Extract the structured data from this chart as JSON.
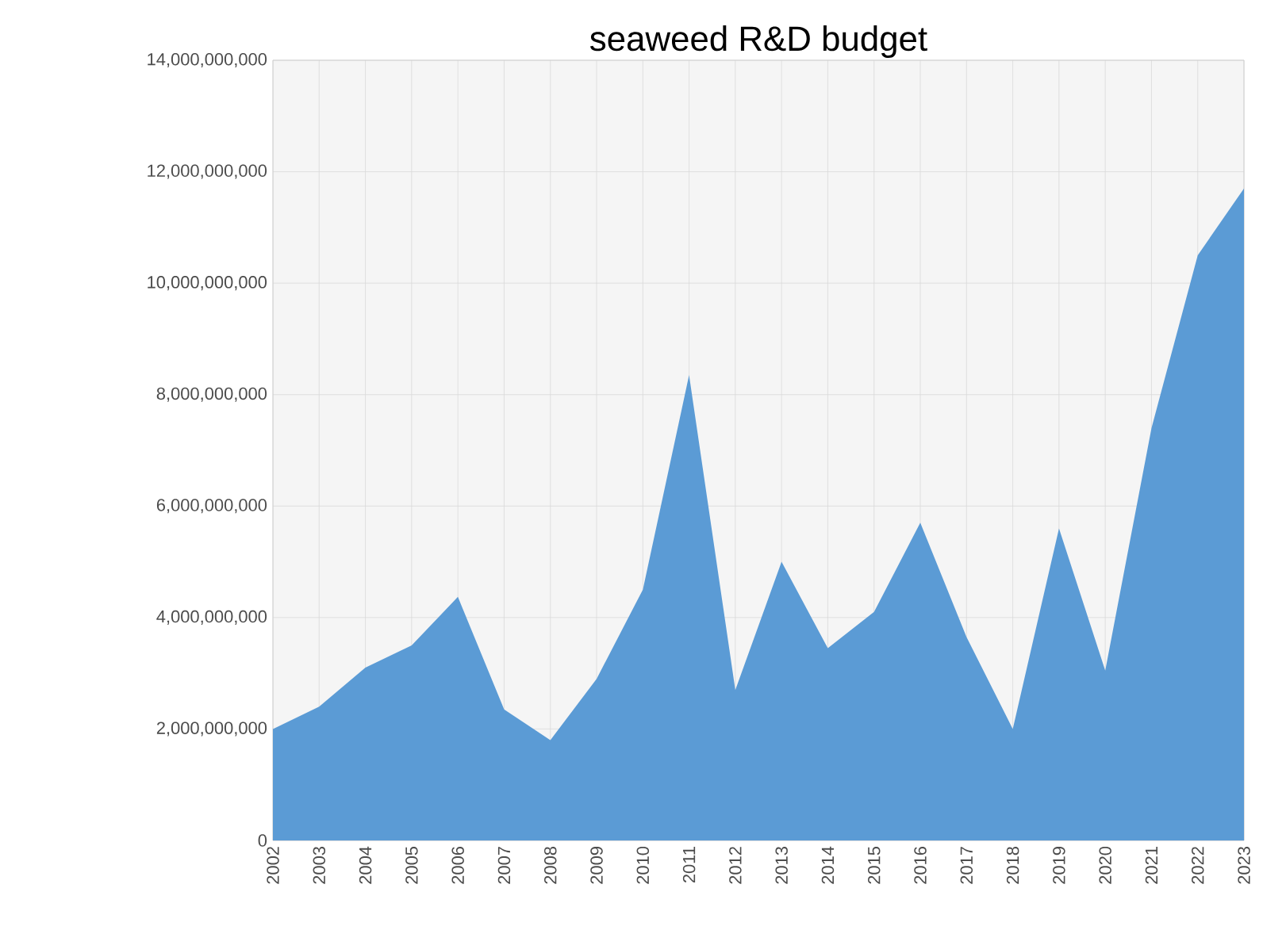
{
  "chart_data": {
    "type": "area",
    "title": "seaweed R&D budget",
    "categories": [
      "2002",
      "2003",
      "2004",
      "2005",
      "2006",
      "2007",
      "2008",
      "2009",
      "2010",
      "2011",
      "2012",
      "2013",
      "2014",
      "2015",
      "2016",
      "2017",
      "2018",
      "2019",
      "2020",
      "2021",
      "2022",
      "2023"
    ],
    "values": [
      2000000000.0,
      2400000000.0,
      3100000000.0,
      3500000000.0,
      4370000000.0,
      2350000000.0,
      1800000000.0,
      2900000000.0,
      4500000000.0,
      8350000000.0,
      2700000000.0,
      5000000000.0,
      3450000000.0,
      4100000000.0,
      5700000000.0,
      3650000000.0,
      2000000000.0,
      5600000000.0,
      3050000000.0,
      7400000000.0,
      10500000000.0,
      11700000000.0
    ],
    "color": "#5b9bd5",
    "ylim": [
      0,
      14000000000
    ],
    "yticks": [
      0,
      {
        "value": 2000000000,
        "label": "2,000,000,000"
      },
      {
        "value": 4000000000,
        "label": "4,000,000,000"
      },
      {
        "value": 6000000000,
        "label": "6,000,000,000"
      },
      {
        "value": 8000000000,
        "label": "8,000,000,000"
      },
      {
        "value": 10000000000,
        "label": "10,000,000,000"
      },
      {
        "value": 12000000000,
        "label": "12,000,000,000"
      },
      {
        "value": 14000000000,
        "label": "14,000,000,000"
      }
    ],
    "grid": true
  }
}
